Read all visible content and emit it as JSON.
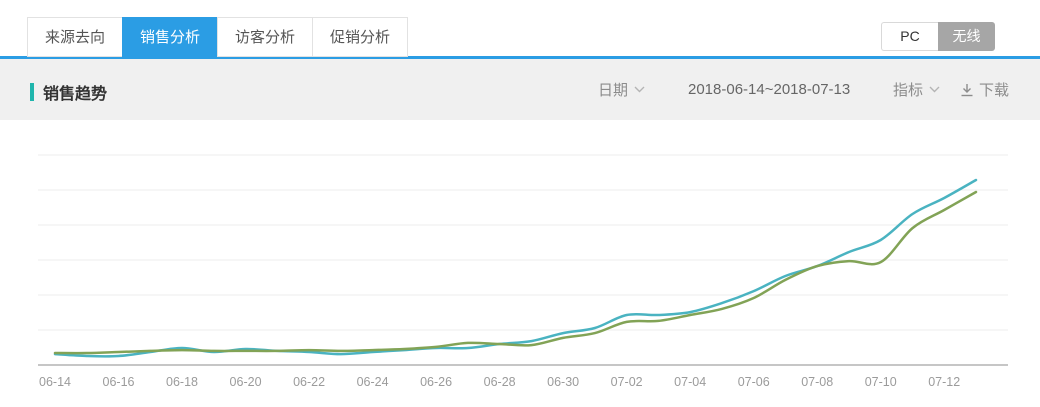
{
  "colors": {
    "accent_blue": "#2b9de4",
    "section_accent_teal": "#1fb5ac",
    "toggle_selected_gray": "#a6a6a6",
    "band_bg": "#f0f0f0",
    "gridline": "#ececec",
    "axis_line": "#c6c6c6",
    "tick_label": "#9b9b9b"
  },
  "tabs": {
    "items": [
      {
        "label": "来源去向",
        "active": false
      },
      {
        "label": "销售分析",
        "active": true
      },
      {
        "label": "访客分析",
        "active": false
      },
      {
        "label": "促销分析",
        "active": false
      }
    ]
  },
  "device_toggle": {
    "options": [
      {
        "label": "PC",
        "selected": false
      },
      {
        "label": "无线",
        "selected": true
      }
    ]
  },
  "section": {
    "title": "销售趋势",
    "date_label": "日期",
    "date_range": "2018-06-14~2018-07-13",
    "metric_label": "指标",
    "download_label": "下载"
  },
  "chart_data": {
    "type": "line",
    "title": "销售趋势",
    "xlabel": "",
    "ylabel": "",
    "grid": true,
    "legend": false,
    "y_axis_labels_visible": false,
    "note": "No y-axis tick labels are shown in the source; values are estimated on a normalized 0-100 scale (100 = top gridline).",
    "ylim": [
      0,
      100
    ],
    "x": [
      "06-14",
      "06-15",
      "06-16",
      "06-17",
      "06-18",
      "06-19",
      "06-20",
      "06-21",
      "06-22",
      "06-23",
      "06-24",
      "06-25",
      "06-26",
      "06-27",
      "06-28",
      "06-29",
      "06-30",
      "07-01",
      "07-02",
      "07-03",
      "07-04",
      "07-05",
      "07-06",
      "07-07",
      "07-08",
      "07-09",
      "07-10",
      "07-11",
      "07-12",
      "07-13"
    ],
    "x_tick_labels": [
      "06-14",
      "06-16",
      "06-18",
      "06-20",
      "06-22",
      "06-24",
      "06-26",
      "06-28",
      "06-30",
      "07-02",
      "07-04",
      "07-06",
      "07-08",
      "07-10",
      "07-12"
    ],
    "series": [
      {
        "name": "series-teal",
        "color": "#4ab3c1",
        "values": [
          5.2,
          4.3,
          4.3,
          6.2,
          8.1,
          6.2,
          7.6,
          6.7,
          6.2,
          5.2,
          6.2,
          7.1,
          8.1,
          8.1,
          10,
          11.4,
          15.2,
          17.6,
          23.8,
          23.8,
          25.2,
          29.5,
          35.2,
          42.4,
          47.1,
          53.8,
          59.5,
          71.9,
          79.5,
          88.1
        ]
      },
      {
        "name": "series-olive",
        "color": "#82a356",
        "values": [
          5.7,
          5.7,
          6.2,
          6.7,
          7.1,
          6.7,
          6.7,
          6.7,
          7.1,
          6.7,
          7.1,
          7.6,
          8.6,
          10.5,
          10,
          9.5,
          12.9,
          15.2,
          20.5,
          21,
          23.8,
          26.7,
          31.9,
          40.5,
          47.1,
          49.5,
          49,
          65.2,
          73.8,
          82.4
        ]
      }
    ]
  }
}
